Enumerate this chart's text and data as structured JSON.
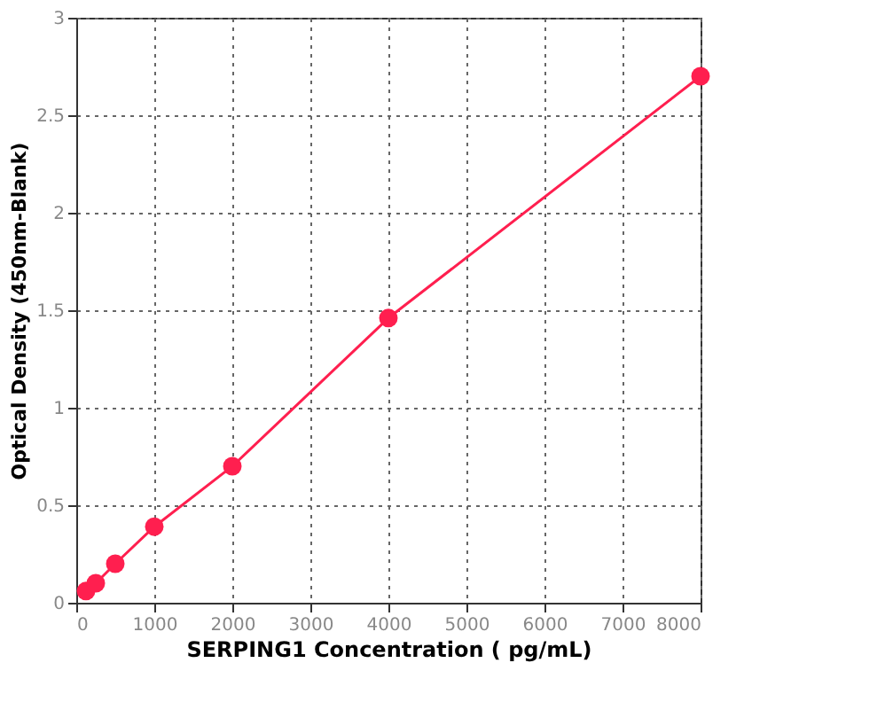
{
  "chart_data": {
    "type": "line",
    "xlabel": "SERPING1 Concentration ( pg/mL)",
    "ylabel": "Optical Density (450nm-Blank)",
    "x": [
      125,
      250,
      500,
      1000,
      2000,
      4000,
      8000
    ],
    "series": [
      {
        "color": "#ff1f4f",
        "values": [
          0.06,
          0.1,
          0.2,
          0.39,
          0.7,
          1.46,
          2.7
        ]
      }
    ],
    "xlim": [
      0,
      8000
    ],
    "xticks": [
      0,
      1000,
      2000,
      3000,
      4000,
      5000,
      6000,
      7000,
      8000
    ],
    "ylim": [
      0,
      3
    ],
    "yticks": [
      0,
      0.5,
      1,
      1.5,
      2,
      2.5,
      3
    ],
    "grid": true,
    "marker": "circle",
    "line_style": "solid"
  }
}
